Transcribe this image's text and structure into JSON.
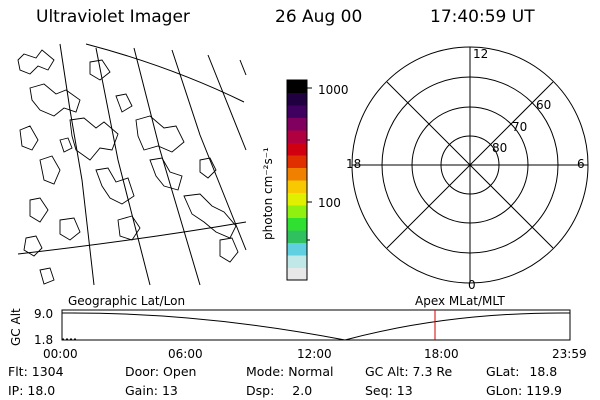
{
  "header": {
    "instrument": "Ultraviolet Imager",
    "date": "26 Aug 00",
    "time": "17:40:59 UT"
  },
  "colorbar": {
    "unit_label": "photon cm⁻²s⁻¹",
    "ticks": [
      "1000",
      "100"
    ],
    "colors": [
      "#e8e8e8",
      "#c0e8e8",
      "#60d0e0",
      "#30c060",
      "#30e030",
      "#90f010",
      "#e0f000",
      "#f8c800",
      "#f08000",
      "#e03000",
      "#d00010",
      "#b00040",
      "#800060",
      "#400060",
      "#200040",
      "#000000"
    ]
  },
  "polar_plot": {
    "mlt_labels": {
      "top": "12",
      "left": "18",
      "right": "6",
      "bottom": "0"
    },
    "lat_labels": [
      "60",
      "70",
      "80"
    ]
  },
  "map_panel": {
    "label": "Geographic Lat/Lon"
  },
  "timeline": {
    "axis_label": "GC Alt",
    "y_top": "9.0",
    "y_bottom": "1.8",
    "left_label": "Geographic Lat/Lon",
    "right_label": "Apex MLat/MLT",
    "times": [
      "00:00",
      "06:00",
      "12:00",
      "18:00",
      "23:59"
    ],
    "marker_color": "#d00000"
  },
  "info": {
    "flt_label": "Flt:",
    "flt_value": "1304",
    "ip_label": "IP:",
    "ip_value": "18.0",
    "door_label": "Door:",
    "door_value": "Open",
    "gain_label": "Gain:",
    "gain_value": "13",
    "mode_label": "Mode:",
    "mode_value": "Normal",
    "dsp_label": "Dsp:",
    "dsp_value": "2.0",
    "gcalt_label": "GC Alt:",
    "gcalt_value": "7.3 Re",
    "seq_label": "Seq:",
    "seq_value": "13",
    "glat_label": "GLat:",
    "glat_value": "18.8",
    "glon_label": "GLon:",
    "glon_value": "119.9"
  }
}
